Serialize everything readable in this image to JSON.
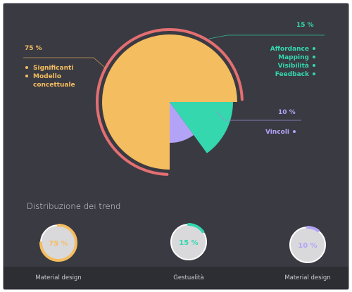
{
  "chart_data": {
    "type": "pie",
    "title": "Distribuzione dei trend",
    "slices": [
      {
        "label": "75 %",
        "value": 75,
        "color": "#f4bd5f",
        "items": [
          "Significanti",
          "Modello concettuale"
        ]
      },
      {
        "label": "15 %",
        "value": 15,
        "color": "#34d7ae",
        "items": [
          "Affordance",
          "Mapping",
          "Visibilità",
          "Feedback"
        ]
      },
      {
        "label": "10 %",
        "value": 10,
        "color": "#b3a3f7",
        "items": [
          "Vincoli"
        ]
      }
    ],
    "gauges": [
      {
        "label": "75 %",
        "value": 75,
        "color": "#f4bd5f",
        "caption": "Material design"
      },
      {
        "label": "15 %",
        "value": 15,
        "color": "#34d7ae",
        "caption": "Gestualità"
      },
      {
        "label": "10 %",
        "value": 10,
        "color": "#b3a3f7",
        "caption": "Material design"
      }
    ],
    "accent_arc_color": "#e46f72"
  }
}
